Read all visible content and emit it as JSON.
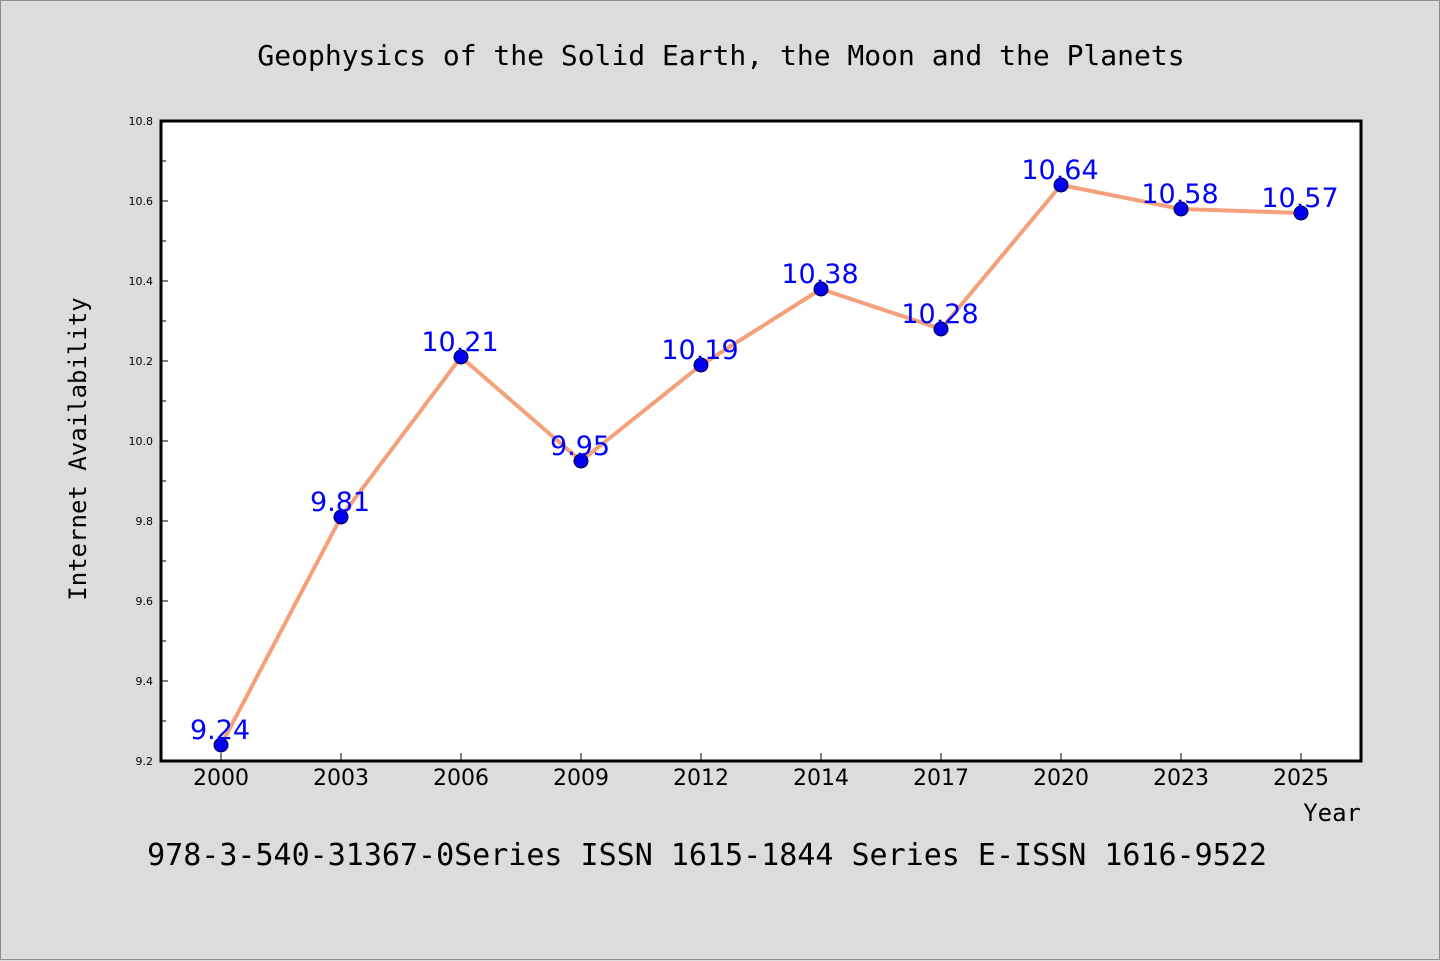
{
  "chart_data": {
    "type": "line",
    "title": "Geophysics of the Solid Earth, the Moon and the Planets",
    "xlabel": "Year",
    "ylabel": "Internet Availability",
    "categories": [
      "2000",
      "2003",
      "2006",
      "2009",
      "2012",
      "2014",
      "2017",
      "2020",
      "2023",
      "2025"
    ],
    "values": [
      9.24,
      9.81,
      10.21,
      9.95,
      10.19,
      10.38,
      10.28,
      10.64,
      10.58,
      10.57
    ],
    "data_labels": [
      "9.24",
      "9.81",
      "10.21",
      "9.95",
      "10.19",
      "10.38",
      "10.28",
      "10.64",
      "10.58",
      "10.57"
    ],
    "ylim": [
      9.2,
      10.8
    ],
    "yticks": [
      "9.2",
      "9.4",
      "9.6",
      "9.8",
      "10.0",
      "10.2",
      "10.4",
      "10.6",
      "10.8"
    ],
    "grid": false,
    "line_color": "#f4a07a",
    "marker_color": "#0000ee",
    "label_color": "#0000ff",
    "footer": "978-3-540-31367-0Series ISSN 1615-1844 Series E-ISSN 1616-9522"
  }
}
